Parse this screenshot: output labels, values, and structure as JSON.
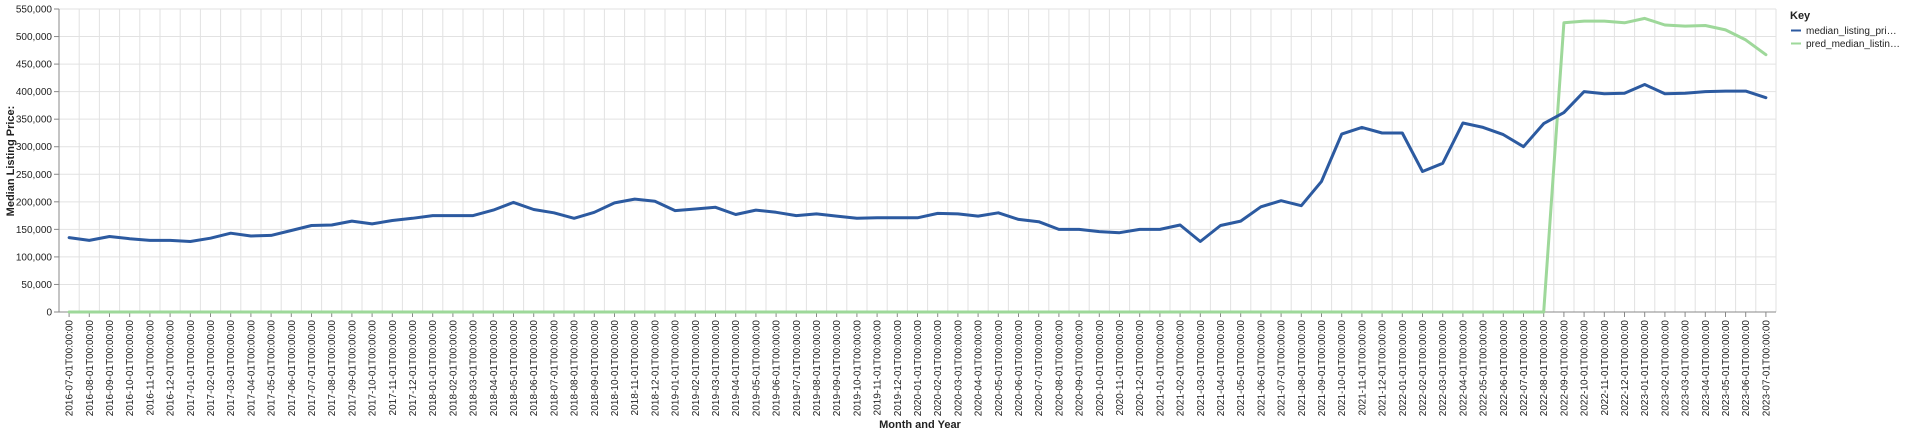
{
  "chart_data": {
    "type": "line",
    "xlabel": "Month and Year",
    "ylabel": "Median Listing Price:",
    "ylim": [
      0,
      550000
    ],
    "y_ticks": [
      "0",
      "50,000",
      "100,000",
      "150,000",
      "200,000",
      "250,000",
      "300,000",
      "350,000",
      "400,000",
      "450,000",
      "500,000",
      "550,000"
    ],
    "y_tick_values": [
      0,
      50000,
      100000,
      150000,
      200000,
      250000,
      300000,
      350000,
      400000,
      450000,
      500000,
      550000
    ],
    "grid": true,
    "legend": {
      "title": "Key",
      "placement": "right"
    },
    "x": [
      "2016-07-01T00:00:00",
      "2016-08-01T00:00:00",
      "2016-09-01T00:00:00",
      "2016-10-01T00:00:00",
      "2016-11-01T00:00:00",
      "2016-12-01T00:00:00",
      "2017-01-01T00:00:00",
      "2017-02-01T00:00:00",
      "2017-03-01T00:00:00",
      "2017-04-01T00:00:00",
      "2017-05-01T00:00:00",
      "2017-06-01T00:00:00",
      "2017-07-01T00:00:00",
      "2017-08-01T00:00:00",
      "2017-09-01T00:00:00",
      "2017-10-01T00:00:00",
      "2017-11-01T00:00:00",
      "2017-12-01T00:00:00",
      "2018-01-01T00:00:00",
      "2018-02-01T00:00:00",
      "2018-03-01T00:00:00",
      "2018-04-01T00:00:00",
      "2018-05-01T00:00:00",
      "2018-06-01T00:00:00",
      "2018-07-01T00:00:00",
      "2018-08-01T00:00:00",
      "2018-09-01T00:00:00",
      "2018-10-01T00:00:00",
      "2018-11-01T00:00:00",
      "2018-12-01T00:00:00",
      "2019-01-01T00:00:00",
      "2019-02-01T00:00:00",
      "2019-03-01T00:00:00",
      "2019-04-01T00:00:00",
      "2019-05-01T00:00:00",
      "2019-06-01T00:00:00",
      "2019-07-01T00:00:00",
      "2019-08-01T00:00:00",
      "2019-09-01T00:00:00",
      "2019-10-01T00:00:00",
      "2019-11-01T00:00:00",
      "2019-12-01T00:00:00",
      "2020-01-01T00:00:00",
      "2020-02-01T00:00:00",
      "2020-03-01T00:00:00",
      "2020-04-01T00:00:00",
      "2020-05-01T00:00:00",
      "2020-06-01T00:00:00",
      "2020-07-01T00:00:00",
      "2020-08-01T00:00:00",
      "2020-09-01T00:00:00",
      "2020-10-01T00:00:00",
      "2020-11-01T00:00:00",
      "2020-12-01T00:00:00",
      "2021-01-01T00:00:00",
      "2021-02-01T00:00:00",
      "2021-03-01T00:00:00",
      "2021-04-01T00:00:00",
      "2021-05-01T00:00:00",
      "2021-06-01T00:00:00",
      "2021-07-01T00:00:00",
      "2021-08-01T00:00:00",
      "2021-09-01T00:00:00",
      "2021-10-01T00:00:00",
      "2021-11-01T00:00:00",
      "2021-12-01T00:00:00",
      "2022-01-01T00:00:00",
      "2022-02-01T00:00:00",
      "2022-03-01T00:00:00",
      "2022-04-01T00:00:00",
      "2022-05-01T00:00:00",
      "2022-06-01T00:00:00",
      "2022-07-01T00:00:00",
      "2022-08-01T00:00:00",
      "2022-09-01T00:00:00",
      "2022-10-01T00:00:00",
      "2022-11-01T00:00:00",
      "2022-12-01T00:00:00",
      "2023-01-01T00:00:00",
      "2023-02-01T00:00:00",
      "2023-03-01T00:00:00",
      "2023-04-01T00:00:00",
      "2023-05-01T00:00:00",
      "2023-06-01T00:00:00",
      "2023-07-01T00:00:00"
    ],
    "series": [
      {
        "name": "median_listing_pri…",
        "color": "#2c5aa0",
        "values": [
          135000,
          130000,
          137000,
          133000,
          130000,
          130000,
          128000,
          134000,
          143000,
          138000,
          139000,
          148000,
          157000,
          158000,
          165000,
          160000,
          166000,
          170000,
          175000,
          175000,
          175000,
          185000,
          199000,
          186000,
          180000,
          170000,
          181000,
          198000,
          205000,
          201000,
          184000,
          187000,
          190000,
          177000,
          185000,
          181000,
          175000,
          178000,
          174000,
          170000,
          171000,
          171000,
          171000,
          179000,
          178000,
          174000,
          180000,
          168000,
          164000,
          150000,
          150000,
          146000,
          144000,
          150000,
          150000,
          158000,
          128000,
          157000,
          165000,
          191000,
          202000,
          193000,
          237000,
          323000,
          335000,
          325000,
          325000,
          255000,
          270000,
          343000,
          335000,
          322000,
          300000,
          342000,
          362000,
          400000,
          396000,
          397000,
          413000,
          396000,
          397000,
          400000,
          401000,
          401000,
          389000
        ]
      },
      {
        "name": "pred_median_listin…",
        "color": "#9ed89a",
        "values": [
          0,
          0,
          0,
          0,
          0,
          0,
          0,
          0,
          0,
          0,
          0,
          0,
          0,
          0,
          0,
          0,
          0,
          0,
          0,
          0,
          0,
          0,
          0,
          0,
          0,
          0,
          0,
          0,
          0,
          0,
          0,
          0,
          0,
          0,
          0,
          0,
          0,
          0,
          0,
          0,
          0,
          0,
          0,
          0,
          0,
          0,
          0,
          0,
          0,
          0,
          0,
          0,
          0,
          0,
          0,
          0,
          0,
          0,
          0,
          0,
          0,
          0,
          0,
          0,
          0,
          0,
          0,
          0,
          0,
          0,
          0,
          0,
          0,
          0,
          525000,
          528000,
          528000,
          525000,
          533000,
          521000,
          519000,
          520000,
          512000,
          494000,
          467000
        ]
      }
    ]
  }
}
